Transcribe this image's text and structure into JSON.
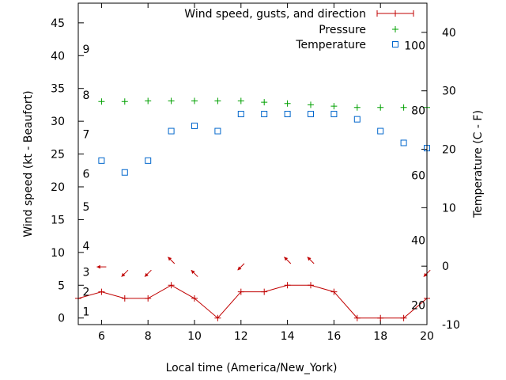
{
  "chart_data": {
    "type": "line",
    "xlabel": "Local time (America/New_York)",
    "ylabel_left": "Wind speed (kt - Beaufort)",
    "ylabel_right": "Temperature (C - F)",
    "xlim": [
      5,
      20
    ],
    "x_ticks": [
      6,
      8,
      10,
      12,
      14,
      16,
      18,
      20
    ],
    "ylim_left": [
      -1,
      48
    ],
    "y_ticks_left": [
      0,
      5,
      10,
      15,
      20,
      25,
      30,
      35,
      40,
      45
    ],
    "beaufort_labels": [
      {
        "label": "1",
        "kt": 1
      },
      {
        "label": "2",
        "kt": 4
      },
      {
        "label": "3",
        "kt": 7
      },
      {
        "label": "4",
        "kt": 11
      },
      {
        "label": "5",
        "kt": 17
      },
      {
        "label": "6",
        "kt": 22
      },
      {
        "label": "7",
        "kt": 28
      },
      {
        "label": "8",
        "kt": 34
      },
      {
        "label": "9",
        "kt": 41
      }
    ],
    "ylim_right_c": [
      -10,
      45
    ],
    "y_ticks_right_c": [
      -10,
      0,
      10,
      20,
      30,
      40
    ],
    "fahrenheit_labels": [
      "20",
      "40",
      "60",
      "80",
      "100"
    ],
    "legend": {
      "placement": "top-right",
      "entries": [
        {
          "label": "Wind speed, gusts, and direction",
          "color": "#c00000",
          "marker": "line-plus"
        },
        {
          "label": "Pressure",
          "color": "#00a000",
          "marker": "plus"
        },
        {
          "label": "Temperature",
          "color": "#0066cc",
          "marker": "square"
        }
      ]
    },
    "series": [
      {
        "name": "Wind speed, gusts, and direction",
        "color": "#c00000",
        "x": [
          5,
          6,
          7,
          8,
          9,
          10,
          11,
          12,
          13,
          14,
          15,
          16,
          17,
          18,
          19,
          20
        ],
        "y": [
          3,
          4,
          3,
          3,
          5,
          3,
          0,
          4,
          4,
          5,
          5,
          4,
          0,
          0,
          0,
          3
        ]
      },
      {
        "name": "Pressure",
        "color": "#00a000",
        "x": [
          6,
          7,
          8,
          9,
          10,
          11,
          12,
          13,
          14,
          15,
          16,
          17,
          18,
          19,
          20
        ],
        "y": [
          33,
          33,
          33.1,
          33.1,
          33.1,
          33.1,
          33.1,
          32.9,
          32.7,
          32.5,
          32.3,
          32.1,
          32.1,
          32.1,
          32.1
        ]
      },
      {
        "name": "Temperature",
        "color": "#0066cc",
        "x": [
          6,
          7,
          8,
          9,
          10,
          11,
          12,
          13,
          14,
          15,
          16,
          17,
          18,
          19,
          20
        ],
        "y": [
          24,
          22.2,
          24,
          28.5,
          29.3,
          28.5,
          31.1,
          31.1,
          31.1,
          31.1,
          31.1,
          30.3,
          28.5,
          26.7,
          25.9
        ]
      }
    ],
    "wind_direction_arrows": [
      {
        "x": 6,
        "y": 7.8,
        "dir": "left"
      },
      {
        "x": 7,
        "y": 6.8,
        "dir": "down-left"
      },
      {
        "x": 8,
        "y": 6.8,
        "dir": "down-left"
      },
      {
        "x": 9,
        "y": 8.8,
        "dir": "up-left"
      },
      {
        "x": 10,
        "y": 6.8,
        "dir": "up-left"
      },
      {
        "x": 12,
        "y": 7.8,
        "dir": "down-left"
      },
      {
        "x": 14,
        "y": 8.8,
        "dir": "up-left"
      },
      {
        "x": 15,
        "y": 8.8,
        "dir": "up-left"
      },
      {
        "x": 20,
        "y": 6.8,
        "dir": "down-left"
      }
    ]
  }
}
